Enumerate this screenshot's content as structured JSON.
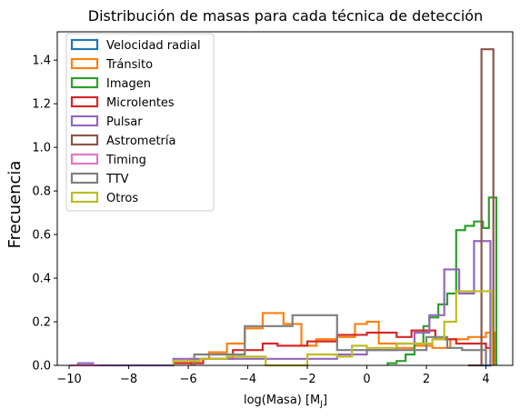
{
  "chart_data": {
    "type": "histogram-step",
    "title": "Distribución de masas para cada técnica de detección",
    "xlabel": "log(Masa) [M",
    "xlabel_sub": "J",
    "xlabel_close": "]",
    "ylabel": "Frecuencia",
    "xlim": [
      -10.4,
      4.9
    ],
    "ylim": [
      0,
      1.53
    ],
    "xticks": [
      -10,
      -8,
      -6,
      -4,
      -2,
      0,
      2,
      4
    ],
    "yticks": [
      0.0,
      0.2,
      0.4,
      0.6,
      0.8,
      1.0,
      1.2,
      1.4
    ],
    "legend_position": "top-left",
    "series": [
      {
        "name": "Velocidad radial",
        "color": "#1f77b4",
        "edges": [
          3.85,
          4.2
        ],
        "values": [
          0.0
        ]
      },
      {
        "name": "Tránsito",
        "color": "#ff7f0e",
        "edges": [
          -5.9,
          -5.3,
          -4.7,
          -4.1,
          -3.5,
          -2.8,
          -2.2,
          -1.7,
          -1.0,
          -0.4,
          0.0,
          0.4,
          1.0,
          1.6,
          2.2,
          2.8,
          3.4,
          4.0,
          4.3
        ],
        "values": [
          0.03,
          0.06,
          0.1,
          0.17,
          0.24,
          0.19,
          0.09,
          0.12,
          0.13,
          0.19,
          0.2,
          0.1,
          0.08,
          0.09,
          0.08,
          0.12,
          0.13,
          0.15
        ]
      },
      {
        "name": "Imagen",
        "color": "#2ca02c",
        "edges": [
          0.7,
          1.0,
          1.3,
          1.6,
          1.9,
          2.1,
          2.4,
          2.7,
          3.0,
          3.3,
          3.6,
          3.9,
          4.1,
          4.35
        ],
        "values": [
          0.01,
          0.02,
          0.05,
          0.1,
          0.18,
          0.22,
          0.28,
          0.33,
          0.62,
          0.64,
          0.66,
          0.63,
          0.77
        ]
      },
      {
        "name": "Microlentes",
        "color": "#d62728",
        "edges": [
          -6.5,
          -5.5,
          -4.5,
          -3.5,
          -3.0,
          -2.0,
          -1.0,
          0.0,
          1.0,
          1.5,
          2.3,
          3.0,
          4.0,
          4.2
        ],
        "values": [
          0.01,
          0.03,
          0.07,
          0.1,
          0.09,
          0.11,
          0.14,
          0.15,
          0.13,
          0.16,
          0.12,
          0.1,
          0.08
        ]
      },
      {
        "name": "Pulsar",
        "color": "#9467bd",
        "edges": [
          -9.7,
          -9.2,
          -6.5,
          -1.0,
          0.0,
          1.0,
          1.6,
          2.1,
          2.6,
          3.1,
          3.6,
          4.15
        ],
        "values": [
          0.01,
          0.0,
          0.03,
          0.05,
          0.07,
          0.1,
          0.15,
          0.23,
          0.44,
          0.33,
          0.57
        ]
      },
      {
        "name": "Astrometría",
        "color": "#8c564b",
        "edges": [
          3.4,
          3.85,
          4.25
        ],
        "values": [
          0.0,
          1.45
        ]
      },
      {
        "name": "Timing",
        "color": "#e377c2",
        "edges": [
          -10,
          -9
        ],
        "values": [
          0.0
        ]
      },
      {
        "name": "TTV",
        "color": "#7f7f7f",
        "edges": [
          -5.8,
          -4.1,
          -2.5,
          -1.0,
          1.1,
          2.0,
          2.7,
          3.2,
          3.7,
          4.0
        ],
        "values": [
          0.05,
          0.18,
          0.23,
          0.07,
          0.07,
          0.13,
          0.08,
          0.07,
          0.07
        ]
      },
      {
        "name": "Otros",
        "color": "#bcbd22",
        "edges": [
          -6.5,
          -5.6,
          -4.7,
          -3.4,
          -2.0,
          -1.0,
          -0.5,
          0.0,
          1.0,
          1.6,
          2.2,
          2.6,
          3.0,
          3.5,
          4.2
        ],
        "values": [
          0.02,
          0.03,
          0.04,
          0.0,
          0.05,
          0.04,
          0.09,
          0.08,
          0.1,
          0.1,
          0.12,
          0.2,
          0.34,
          0.34
        ]
      }
    ]
  }
}
